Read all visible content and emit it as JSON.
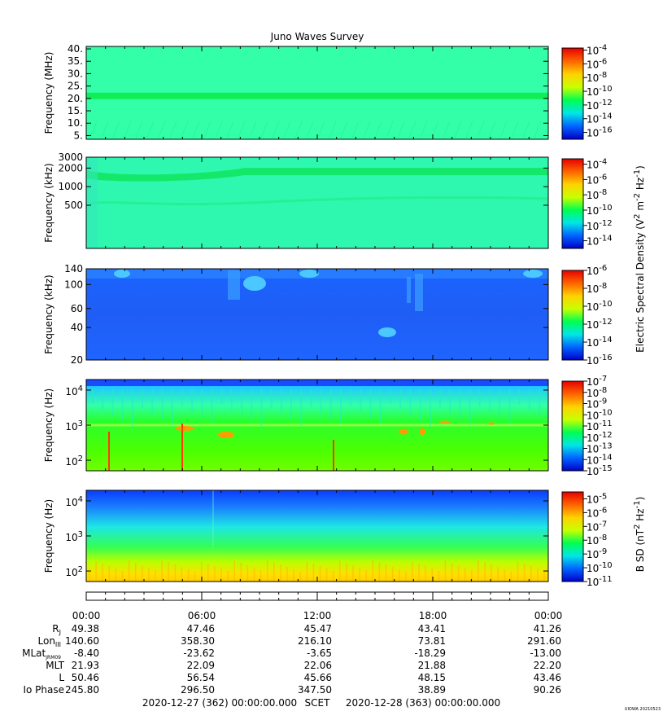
{
  "chart_data": {
    "title": "Juno Waves Survey",
    "type": "heatmap",
    "panels": [
      {
        "ylabel": "Frequency (MHz)",
        "scale": "linear",
        "ylim": [
          3.5,
          41
        ],
        "yticks": [
          {
            "v": 5,
            "label": "5."
          },
          {
            "v": 10,
            "label": "10."
          },
          {
            "v": 15,
            "label": "15."
          },
          {
            "v": 20,
            "label": "20."
          },
          {
            "v": 25,
            "label": "25."
          },
          {
            "v": 30,
            "label": "30."
          },
          {
            "v": 35,
            "label": "35."
          },
          {
            "v": 40,
            "label": "40."
          }
        ],
        "colorbar": {
          "log_range": [
            -17,
            -3.7
          ],
          "ticks": [
            {
              "b": "10",
              "e": "-4",
              "v": -4
            },
            {
              "b": "10",
              "e": "-6",
              "v": -6
            },
            {
              "b": "10",
              "e": "-8",
              "v": -8
            },
            {
              "b": "10",
              "e": "-10",
              "v": -10
            },
            {
              "b": "10",
              "e": "-12",
              "v": -12
            },
            {
              "b": "10",
              "e": "-14",
              "v": -14
            },
            {
              "b": "10",
              "e": "-16",
              "v": -16
            }
          ]
        }
      },
      {
        "ylabel": "Frequency (kHz)",
        "scale": "log",
        "ylim": [
          100,
          3000
        ],
        "yticks": [
          {
            "v": 500,
            "label": "500"
          },
          {
            "v": 1000,
            "label": "1000"
          },
          {
            "v": 2000,
            "label": "2000"
          },
          {
            "v": 3000,
            "label": "3000"
          }
        ],
        "colorbar": {
          "log_range": [
            -15,
            -3.3
          ],
          "ticks": [
            {
              "b": "10",
              "e": "-4",
              "v": -4
            },
            {
              "b": "10",
              "e": "-6",
              "v": -6
            },
            {
              "b": "10",
              "e": "-8",
              "v": -8
            },
            {
              "b": "10",
              "e": "-10",
              "v": -10
            },
            {
              "b": "10",
              "e": "-12",
              "v": -12
            },
            {
              "b": "10",
              "e": "-14",
              "v": -14
            }
          ]
        }
      },
      {
        "ylabel": "Frequency (kHz)",
        "scale": "log",
        "ylim": [
          20,
          140
        ],
        "yticks": [
          {
            "v": 20,
            "label": "20"
          },
          {
            "v": 40,
            "label": "40"
          },
          {
            "v": 60,
            "label": "60"
          },
          {
            "v": 100,
            "label": "100"
          },
          {
            "v": 140,
            "label": "140"
          }
        ],
        "colorbar": {
          "log_range": [
            -16,
            -6
          ],
          "ticks": [
            {
              "b": "10",
              "e": "-6",
              "v": -6
            },
            {
              "b": "10",
              "e": "-8",
              "v": -8
            },
            {
              "b": "10",
              "e": "-10",
              "v": -10
            },
            {
              "b": "10",
              "e": "-12",
              "v": -12
            },
            {
              "b": "10",
              "e": "-14",
              "v": -14
            },
            {
              "b": "10",
              "e": "-16",
              "v": -16
            }
          ]
        }
      },
      {
        "ylabel": "Frequency (Hz)",
        "scale": "log",
        "ylim": [
          50,
          20000
        ],
        "yticks": [
          {
            "v": 100,
            "label": "",
            "b": "10",
            "e": "2"
          },
          {
            "v": 1000,
            "label": "",
            "b": "10",
            "e": "3"
          },
          {
            "v": 10000,
            "label": "",
            "b": "10",
            "e": "4"
          }
        ],
        "colorbar": {
          "log_range": [
            -15,
            -7
          ],
          "ticks": [
            {
              "b": "10",
              "e": "-7",
              "v": -7
            },
            {
              "b": "10",
              "e": "-8",
              "v": -8
            },
            {
              "b": "10",
              "e": "-9",
              "v": -9
            },
            {
              "b": "10",
              "e": "-10",
              "v": -10
            },
            {
              "b": "10",
              "e": "-11",
              "v": -11
            },
            {
              "b": "10",
              "e": "-12",
              "v": -12
            },
            {
              "b": "10",
              "e": "-13",
              "v": -13
            },
            {
              "b": "10",
              "e": "-14",
              "v": -14
            },
            {
              "b": "10",
              "e": "-15",
              "v": -15
            }
          ]
        }
      },
      {
        "ylabel": "Frequency (Hz)",
        "scale": "log",
        "ylim": [
          50,
          20000
        ],
        "yticks": [
          {
            "v": 100,
            "label": "",
            "b": "10",
            "e": "2"
          },
          {
            "v": 1000,
            "label": "",
            "b": "10",
            "e": "3"
          },
          {
            "v": 10000,
            "label": "",
            "b": "10",
            "e": "4"
          }
        ],
        "colorbar": {
          "log_range": [
            -11,
            -4.5
          ],
          "ticks": [
            {
              "b": "10",
              "e": "-5",
              "v": -5
            },
            {
              "b": "10",
              "e": "-6",
              "v": -6
            },
            {
              "b": "10",
              "e": "-7",
              "v": -7
            },
            {
              "b": "10",
              "e": "-8",
              "v": -8
            },
            {
              "b": "10",
              "e": "-9",
              "v": -9
            },
            {
              "b": "10",
              "e": "-10",
              "v": -10
            },
            {
              "b": "10",
              "e": "-11",
              "v": -11
            }
          ]
        }
      }
    ],
    "colorbar_labels": {
      "e_field": {
        "pre": "Electric Spectral Density (V",
        "sup1": "2",
        "mid": " m",
        "sup2": "-2",
        "mid2": " Hz",
        "sup3": "-1",
        "post": ")"
      },
      "b_field": {
        "pre": "B SD (nT",
        "sup1": "2",
        "mid": " Hz",
        "sup2": "-1",
        "post": ")"
      }
    },
    "colormap": [
      "#0000c8",
      "#0064ff",
      "#00e6e6",
      "#00ff50",
      "#c8ff00",
      "#ffd200",
      "#ff6400",
      "#e60000"
    ],
    "time_labels": [
      "00:00",
      "06:00",
      "12:00",
      "18:00",
      "00:00"
    ],
    "ephemeris": [
      {
        "label": "R",
        "sub": "J",
        "values": [
          "49.38",
          "47.46",
          "45.47",
          "43.41",
          "41.26"
        ]
      },
      {
        "label": "Lon",
        "sub": "III",
        "values": [
          "140.60",
          "358.30",
          "216.10",
          "73.81",
          "291.60"
        ]
      },
      {
        "label": "MLat",
        "sub": "JRM09",
        "values": [
          "-8.40",
          "-23.62",
          "-3.65",
          "-18.29",
          "-13.00"
        ]
      },
      {
        "label": "MLT",
        "sub": "",
        "values": [
          "21.93",
          "22.09",
          "22.06",
          "21.88",
          "22.20"
        ]
      },
      {
        "label": "L",
        "sub": "",
        "values": [
          "50.46",
          "56.54",
          "45.66",
          "48.15",
          "43.46"
        ]
      },
      {
        "label": "Io Phase",
        "sub": "",
        "values": [
          "245.80",
          "296.50",
          "347.50",
          "38.89",
          "90.26"
        ]
      }
    ],
    "time_range": {
      "start": "2020-12-27 (362) 00:00:00.000",
      "axis": "SCET",
      "end": "2020-12-28 (363) 00:00:00.000"
    },
    "footer_tag": "UIOWA 20210523"
  }
}
